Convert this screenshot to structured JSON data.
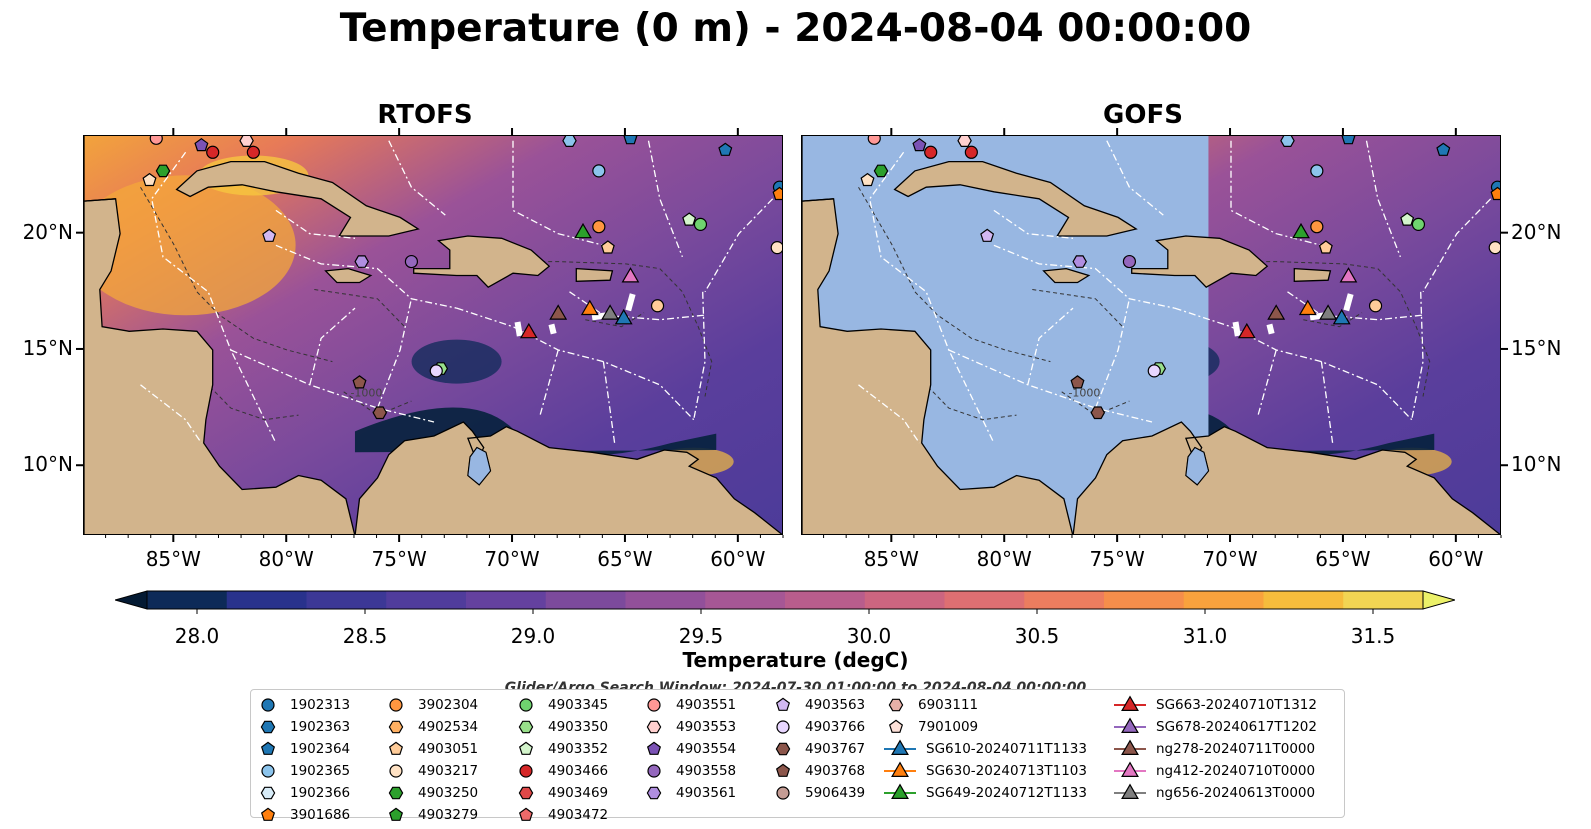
{
  "title": "Temperature (0 m) - 2024-08-04 00:00:00",
  "panels": [
    {
      "title": "RTOFS",
      "mask_west_of": null
    },
    {
      "title": "GOFS",
      "mask_west_of": -71
    }
  ],
  "map": {
    "extent": {
      "lon_min": -89,
      "lon_max": -58,
      "lat_min": 7,
      "lat_max": 24.2
    },
    "lon_ticks": [
      "85°W",
      "80°W",
      "75°W",
      "70°W",
      "65°W",
      "60°W"
    ],
    "lon_tick_values": [
      -85,
      -80,
      -75,
      -70,
      -65,
      -60
    ],
    "lat_ticks": [
      "20°N",
      "15°N",
      "10°N"
    ],
    "lat_tick_values": [
      20,
      15,
      10
    ],
    "contour_label": "-1000",
    "colors": {
      "land": "#d2b48c",
      "masked_ocean": "#98b7e2",
      "eez_lines": "#ffffff",
      "bathymetry": "#333333"
    }
  },
  "colorbar": {
    "title": "Temperature (degC)",
    "ticks": [
      "28.0",
      "28.5",
      "29.0",
      "29.5",
      "30.0",
      "30.5",
      "31.0",
      "31.5"
    ],
    "tick_values": [
      28.0,
      28.5,
      29.0,
      29.5,
      30.0,
      30.5,
      31.0,
      31.5
    ],
    "min": 28.0,
    "max": 31.5,
    "step": 0.25,
    "colors": [
      "#041a33",
      "#0d2a58",
      "#29328c",
      "#3c3896",
      "#503c9c",
      "#64419f",
      "#7c4a9c",
      "#92509a",
      "#a65795",
      "#b85d8c",
      "#cc6580",
      "#de6f72",
      "#ec7d5f",
      "#f58e4b",
      "#f9a23d",
      "#f6bc3c",
      "#f2d553",
      "#ecf169"
    ]
  },
  "search_window": "Glider/Argo Search Window: 2024-07-30 01:00:00 to 2024-08-04 00:00:00",
  "legend": {
    "columns": [
      [
        {
          "label": "1902313",
          "marker": "circle",
          "color": "#1f77b4"
        },
        {
          "label": "1902363",
          "marker": "hexagon",
          "color": "#1f77b4"
        },
        {
          "label": "1902364",
          "marker": "pentagon",
          "color": "#1f77b4"
        },
        {
          "label": "1902365",
          "marker": "circle",
          "color": "#8cc4ec"
        },
        {
          "label": "1902366",
          "marker": "hexagon",
          "color": "#d8ecf8"
        },
        {
          "label": "3901686",
          "marker": "pentagon",
          "color": "#ff7f0e"
        }
      ],
      [
        {
          "label": "3902304",
          "marker": "circle",
          "color": "#ff9640"
        },
        {
          "label": "4902534",
          "marker": "hexagon",
          "color": "#ffb062"
        },
        {
          "label": "4903051",
          "marker": "pentagon",
          "color": "#ffcc99"
        },
        {
          "label": "4903217",
          "marker": "circle",
          "color": "#ffe2c4"
        },
        {
          "label": "4903250",
          "marker": "hexagon",
          "color": "#2ca02c"
        },
        {
          "label": "4903279",
          "marker": "pentagon",
          "color": "#2ca02c"
        }
      ],
      [
        {
          "label": "4903345",
          "marker": "circle",
          "color": "#6fd36f"
        },
        {
          "label": "4903350",
          "marker": "hexagon",
          "color": "#98df8a"
        },
        {
          "label": "4903352",
          "marker": "pentagon",
          "color": "#d4f5cc"
        },
        {
          "label": "4903466",
          "marker": "circle",
          "color": "#d62728"
        },
        {
          "label": "4903469",
          "marker": "hexagon",
          "color": "#e04848"
        },
        {
          "label": "4903472",
          "marker": "pentagon",
          "color": "#ee6a6a"
        }
      ],
      [
        {
          "label": "4903551",
          "marker": "circle",
          "color": "#ff9896"
        },
        {
          "label": "4903553",
          "marker": "hexagon",
          "color": "#ffd0cf"
        },
        {
          "label": "4903554",
          "marker": "pentagon",
          "color": "#7b52b5"
        },
        {
          "label": "4903558",
          "marker": "circle",
          "color": "#9467bd"
        },
        {
          "label": "4903561",
          "marker": "hexagon",
          "color": "#b08ee0"
        }
      ],
      [
        {
          "label": "4903563",
          "marker": "pentagon",
          "color": "#d2b8f2"
        },
        {
          "label": "4903766",
          "marker": "circle",
          "color": "#e8d6ff"
        },
        {
          "label": "4903767",
          "marker": "hexagon",
          "color": "#8c564b"
        },
        {
          "label": "4903768",
          "marker": "pentagon",
          "color": "#8c564b"
        },
        {
          "label": "5906439",
          "marker": "circle",
          "color": "#c49c94"
        }
      ],
      [
        {
          "label": "6903111",
          "marker": "hexagon",
          "color": "#e8b0a8"
        },
        {
          "label": "7901009",
          "marker": "pentagon",
          "color": "#fde0d8"
        },
        {
          "label": "SG610-20240711T1133",
          "marker": "triangle-line",
          "color": "#1f77b4"
        },
        {
          "label": "SG630-20240713T1103",
          "marker": "triangle-line",
          "color": "#ff7f0e"
        },
        {
          "label": "SG649-20240712T1133",
          "marker": "triangle-line",
          "color": "#2ca02c"
        }
      ],
      [
        {
          "label": "SG663-20240710T1312",
          "marker": "triangle-line",
          "color": "#d62728"
        },
        {
          "label": "SG678-20240617T1202",
          "marker": "triangle-line",
          "color": "#9467bd"
        },
        {
          "label": "ng278-20240711T0000",
          "marker": "triangle-line",
          "color": "#8c564b"
        },
        {
          "label": "ng412-20240710T0000",
          "marker": "triangle-line",
          "color": "#e377c2"
        },
        {
          "label": "ng656-20240613T0000",
          "marker": "triangle-line",
          "color": "#7f7f7f"
        }
      ]
    ]
  }
}
